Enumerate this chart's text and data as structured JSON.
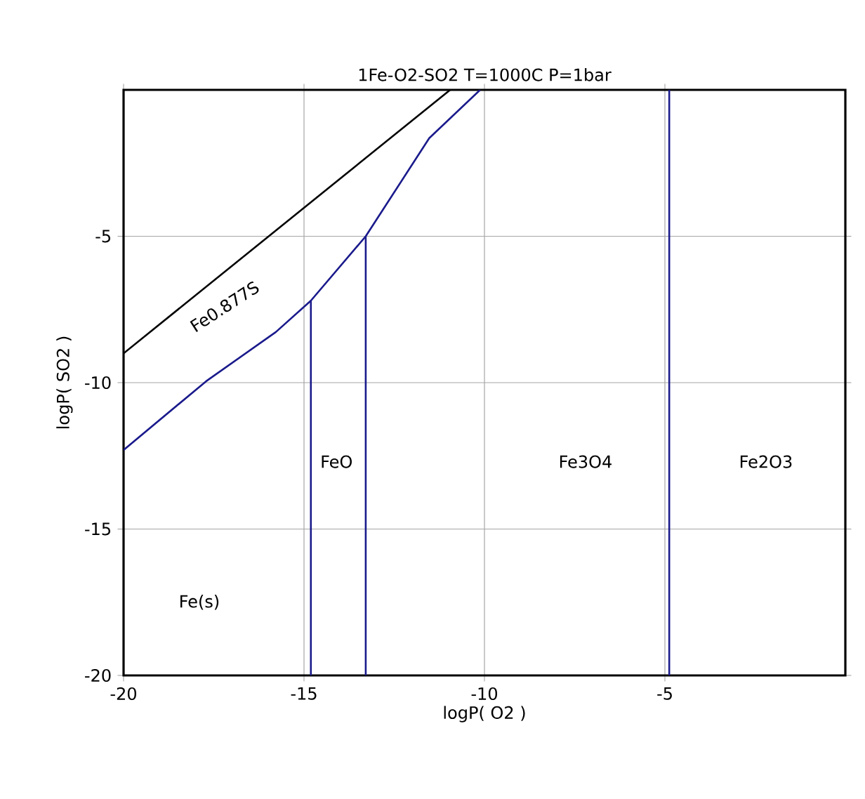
{
  "chart_data": {
    "type": "line",
    "title": "1Fe-O2-SO2     T=1000C  P=1bar",
    "xlabel": "logP( O2 )",
    "ylabel": "logP( SO2 )",
    "xlim": [
      -20,
      0
    ],
    "ylim": [
      -20,
      0
    ],
    "xticks": [
      -20,
      -15,
      -10,
      -5
    ],
    "yticks": [
      -20,
      -15,
      -10,
      -5
    ],
    "grid": true,
    "marker": "none",
    "line_style": "solid",
    "series": [
      {
        "color": "#000000",
        "x": [
          -20,
          -10.95
        ],
        "values": [
          -9.0,
          0
        ]
      },
      {
        "color": "#1a1a8c",
        "x": [
          -20,
          -17.71,
          -15.78,
          -14.81,
          -13.29,
          -11.53,
          -10.12
        ],
        "values": [
          -12.3,
          -9.95,
          -8.27,
          -7.2,
          -5,
          -1.65,
          0
        ]
      },
      {
        "color": "#1a1a8c",
        "x": [
          -14.81,
          -14.81
        ],
        "values": [
          -20,
          -7.2
        ]
      },
      {
        "color": "#1a1a8c",
        "x": [
          -13.29,
          -13.29
        ],
        "values": [
          -20,
          -5
        ]
      },
      {
        "color": "#1a1a8c",
        "x": [
          -4.88,
          -4.88
        ],
        "values": [
          -20,
          0
        ]
      }
    ],
    "annotations": [
      "Fe0.877S",
      "FeO",
      "Fe3O4",
      "Fe2O3",
      "Fe(s)"
    ]
  }
}
